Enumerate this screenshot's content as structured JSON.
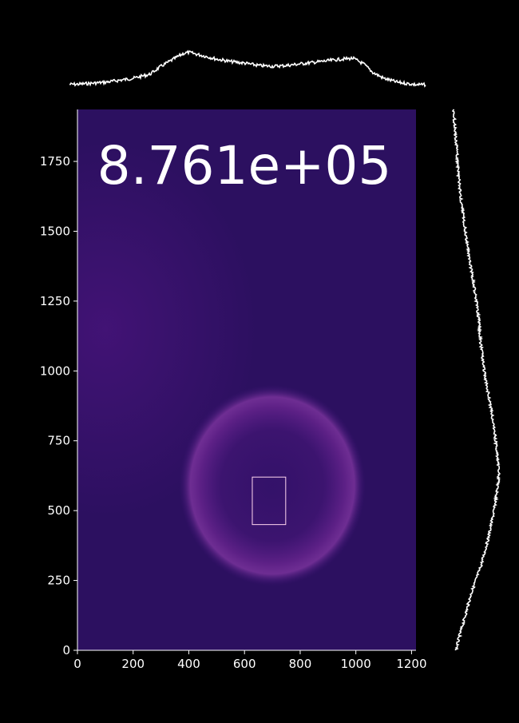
{
  "chart_data": {
    "type": "heatmap",
    "title": "",
    "xlabel": "",
    "ylabel": "",
    "overlay_value": "8.761e+05",
    "xlim": [
      0,
      1216
    ],
    "ylim": [
      0,
      1936
    ],
    "x_ticks": [
      0,
      200,
      400,
      600,
      800,
      1000,
      1200
    ],
    "y_ticks": [
      0,
      250,
      500,
      750,
      1000,
      1250,
      1500,
      1750
    ],
    "x_tick_labels": [
      "0",
      "200",
      "400",
      "600",
      "800",
      "1000",
      "1200"
    ],
    "y_tick_labels": [
      "0",
      "250",
      "500",
      "750",
      "1000",
      "1250",
      "1500",
      "1750"
    ],
    "roi": {
      "x0": 628,
      "x1": 748,
      "y0": 450,
      "y1": 620
    },
    "ring": {
      "center_x": 700,
      "center_y": 590,
      "radius_x": 670,
      "radius_y": 720
    },
    "x_profile": {
      "x": [
        0,
        100,
        200,
        260,
        300,
        350,
        380,
        400,
        430,
        460,
        500,
        550,
        600,
        650,
        700,
        750,
        800,
        850,
        900,
        950,
        990,
        1030,
        1060,
        1100,
        1150,
        1216
      ],
      "values": [
        0.15,
        0.2,
        0.3,
        0.4,
        0.6,
        0.8,
        0.92,
        0.95,
        0.9,
        0.85,
        0.78,
        0.72,
        0.68,
        0.62,
        0.6,
        0.62,
        0.66,
        0.7,
        0.74,
        0.78,
        0.8,
        0.65,
        0.45,
        0.3,
        0.2,
        0.14
      ]
    },
    "y_profile": {
      "y": [
        0,
        50,
        100,
        200,
        300,
        400,
        500,
        600,
        640,
        700,
        800,
        900,
        1000,
        1100,
        1200,
        1300,
        1400,
        1500,
        1600,
        1700,
        1800,
        1936
      ],
      "values": [
        0.05,
        0.12,
        0.2,
        0.35,
        0.55,
        0.7,
        0.82,
        0.9,
        0.92,
        0.88,
        0.82,
        0.72,
        0.62,
        0.55,
        0.5,
        0.42,
        0.32,
        0.24,
        0.16,
        0.1,
        0.06,
        0.0
      ]
    },
    "colors": {
      "background": "#000000",
      "field_dark": "#2c1060",
      "field_mid": "#3d1275",
      "ring": "#6a2590",
      "ring_core": "#8a3aa8",
      "roi": "#ffd6f0",
      "profile": "#ffffff",
      "text": "#ffffff"
    }
  }
}
